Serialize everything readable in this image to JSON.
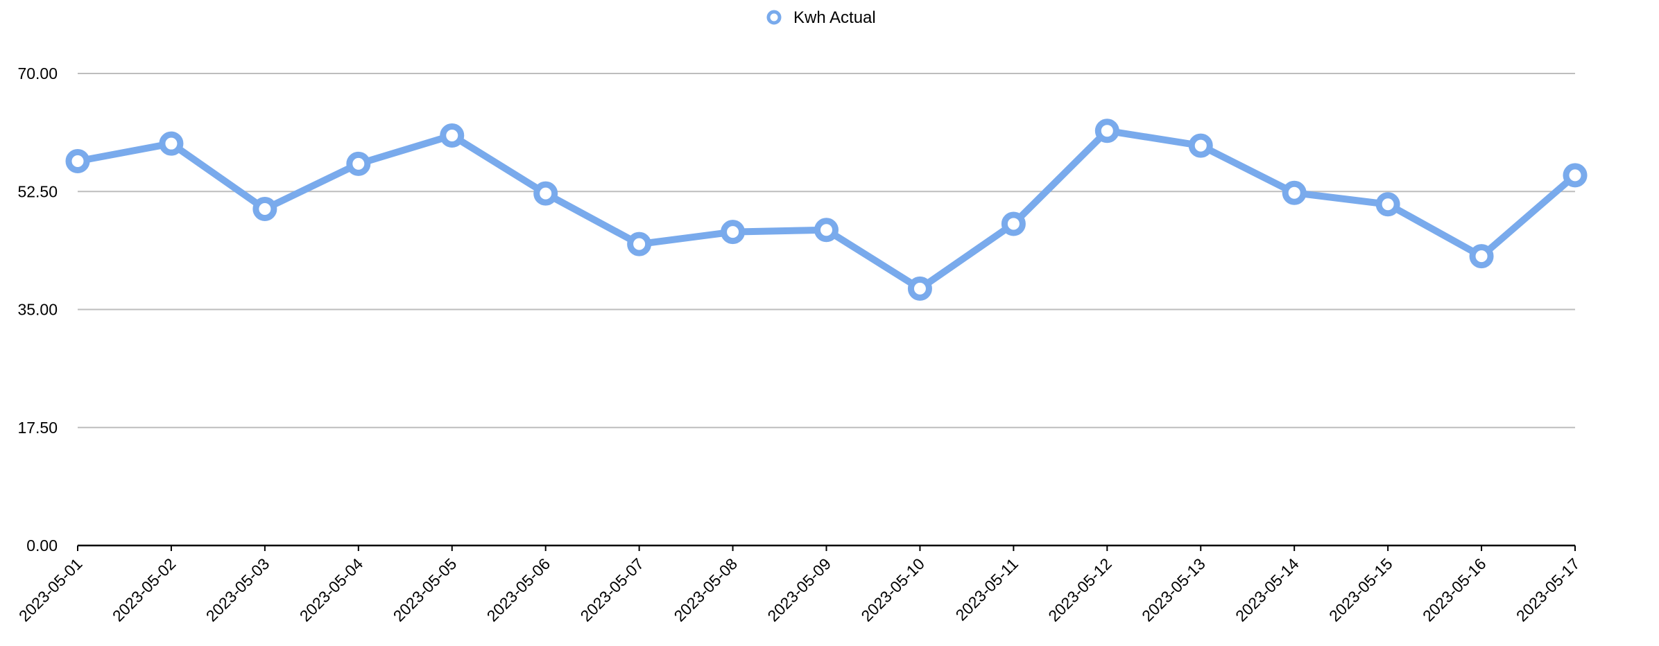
{
  "chart_data": {
    "type": "line",
    "title": "",
    "xlabel": "",
    "ylabel": "",
    "x": [
      "2023-05-01",
      "2023-05-02",
      "2023-05-03",
      "2023-05-04",
      "2023-05-05",
      "2023-05-06",
      "2023-05-07",
      "2023-05-08",
      "2023-05-09",
      "2023-05-10",
      "2023-05-11",
      "2023-05-12",
      "2023-05-13",
      "2023-05-14",
      "2023-05-15",
      "2023-05-16",
      "2023-05-17"
    ],
    "series": [
      {
        "name": "Kwh Actual",
        "color": "#79aaec",
        "values": [
          57.0,
          59.6,
          49.9,
          56.6,
          60.8,
          52.2,
          44.7,
          46.5,
          46.8,
          38.1,
          47.7,
          61.5,
          59.3,
          52.3,
          50.6,
          42.9,
          54.9
        ]
      }
    ],
    "ylim": [
      0,
      70
    ],
    "yticks": [
      "0.00",
      "17.50",
      "35.00",
      "52.50",
      "70.00"
    ],
    "grid": true,
    "legend_position": "top-center"
  }
}
